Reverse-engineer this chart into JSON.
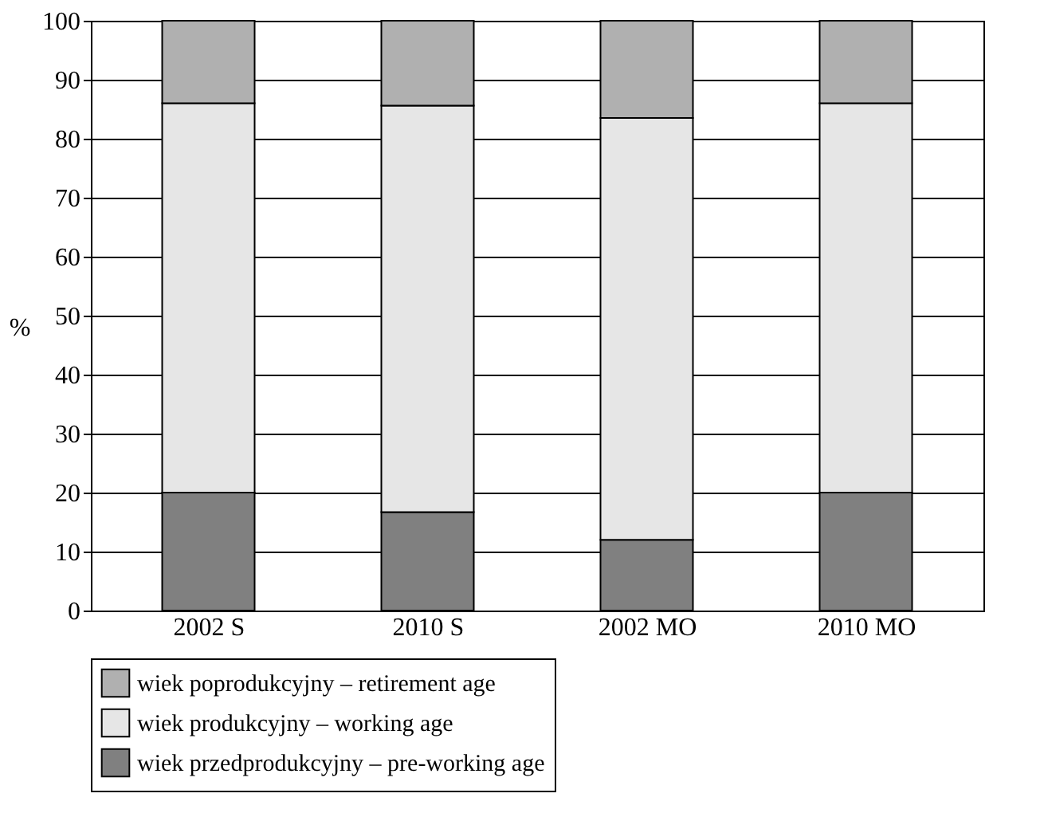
{
  "chart_data": {
    "type": "bar",
    "stacked": true,
    "ylabel": "%",
    "categories": [
      "2002 S",
      "2010 S",
      "2002 MO",
      "2010 MO"
    ],
    "series": [
      {
        "name": "wiek przedprodukcyjny – pre-working age",
        "color": "#808080",
        "values": [
          20,
          16.7,
          12,
          20
        ]
      },
      {
        "name": "wiek produkcyjny – working age",
        "color": "#e6e6e6",
        "values": [
          66,
          68.9,
          71.5,
          66
        ]
      },
      {
        "name": "wiek poprodukcyjny – retirement age",
        "color": "#b0b0b0",
        "values": [
          14,
          14.4,
          16.5,
          14
        ]
      }
    ],
    "ylim": [
      0,
      100
    ],
    "yticks": [
      0,
      10,
      20,
      30,
      40,
      50,
      60,
      70,
      80,
      90,
      100
    ],
    "grid": "y",
    "legend": "bottom"
  }
}
